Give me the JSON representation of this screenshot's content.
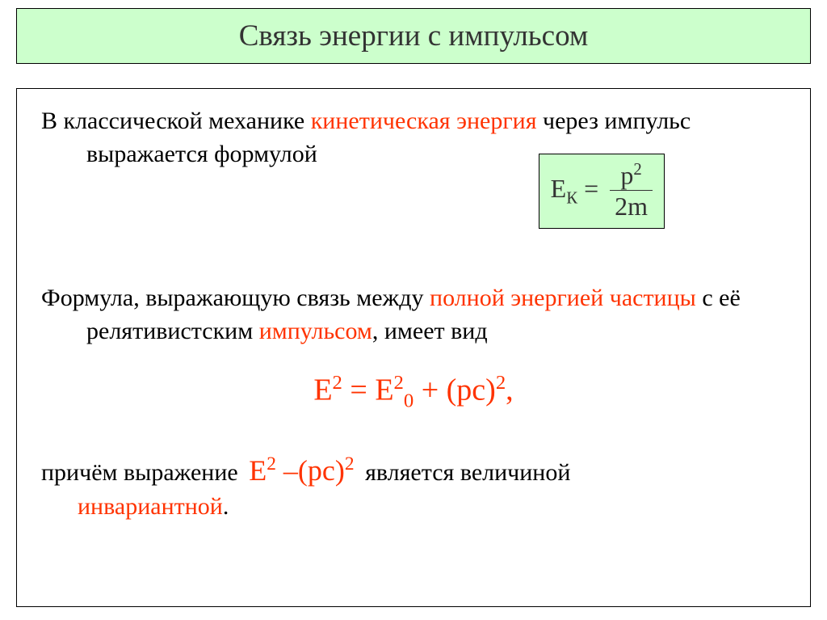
{
  "title": "Связь энергии с импульсом",
  "para1": {
    "pre": "В классической механике ",
    "hl1": "кинетическая энергия",
    "mid": " через импульс выражается формулой"
  },
  "formula_box": {
    "lhs": "E",
    "lhs_sub": "К",
    "eq": " = ",
    "num_base": "p",
    "num_exp": "2",
    "den": "2m"
  },
  "para2": {
    "pre": "Формула, выражающую связь между ",
    "hl1": "полной энергией частицы",
    "mid": " с её релятивистским ",
    "hl2": "импульсом",
    "post": ", имеет вид"
  },
  "eq_center": {
    "E": "E",
    "sq": "2",
    "eq1": "  =   ",
    "E0": "E",
    "E0_sup": "2",
    "E0_sub": "0",
    "plus": "  + (pc)",
    "pc_sup": "2",
    "comma": ","
  },
  "para3": {
    "pre": "причём выражение   ",
    "expr_E": "E",
    "expr_sup1": "2",
    "expr_mid": " –(pc)",
    "expr_sup2": "2",
    "post1": "   является величиной ",
    "hl": "инвариантной",
    "dot": "."
  },
  "colors": {
    "banner_bg": "#ccffcc",
    "highlight": "#ff3300",
    "text": "#000000",
    "border": "#000000"
  }
}
